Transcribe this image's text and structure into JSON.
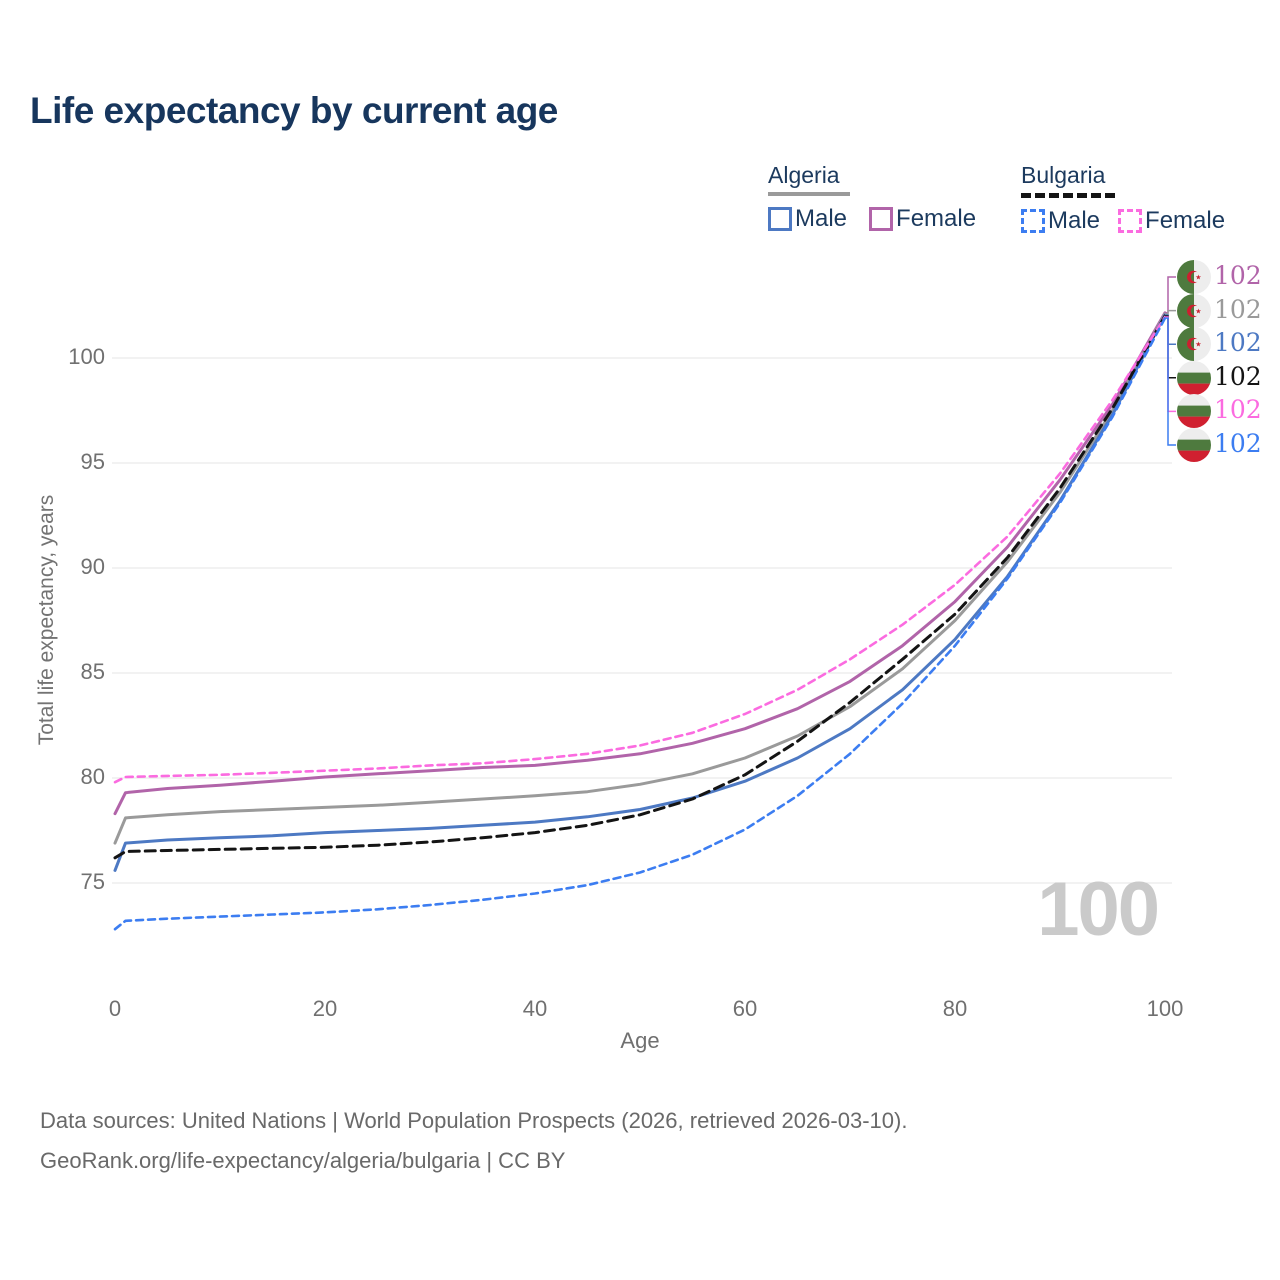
{
  "title": "Life expectancy by current age",
  "watermark": "100",
  "legend": {
    "algeria": {
      "label": "Algeria",
      "male": "Male",
      "female": "Female"
    },
    "bulgaria": {
      "label": "Bulgaria",
      "male": "Male",
      "female": "Female"
    }
  },
  "footer": {
    "line1": "Data sources: United Nations | World Population Prospects (2026, retrieved 2026-03-10).",
    "line2": "GeoRank.org/life-expectancy/algeria/bulgaria | CC BY"
  },
  "colors": {
    "title_text": "#17365d",
    "axis_text": "#707070",
    "grid": "#e9e9e9",
    "algeria_male": "#4d79c3",
    "algeria_female": "#b164a9",
    "algeria_total": "#9a9a9a",
    "bulgaria_male": "#3c7df1",
    "bulgaria_female": "#fb6be0",
    "bulgaria_total": "#141414",
    "watermark": "#cacaca"
  },
  "chart_data": {
    "type": "line",
    "title": "Life expectancy by current age",
    "xlabel": "Age",
    "ylabel": "Total life expectancy, years",
    "xlim": [
      0,
      100
    ],
    "ylim": [
      72,
      103
    ],
    "xticks": [
      0,
      20,
      40,
      60,
      80,
      100
    ],
    "yticks": [
      75,
      80,
      85,
      90,
      95,
      100
    ],
    "grid": "horizontal-only",
    "legend_position": "top-right",
    "ages": [
      0,
      1,
      5,
      10,
      15,
      20,
      25,
      30,
      35,
      40,
      45,
      50,
      55,
      60,
      65,
      70,
      75,
      80,
      85,
      90,
      95,
      100
    ],
    "series": [
      {
        "name": "Algeria Female",
        "country": "Algeria",
        "sex": "Female",
        "line_style": "solid",
        "color": "#b164a9",
        "end_label": "102",
        "end_row": 0,
        "flag": "algeria",
        "values": [
          78.3,
          79.3,
          79.5,
          79.65,
          79.85,
          80.05,
          80.2,
          80.35,
          80.5,
          80.6,
          80.85,
          81.15,
          81.65,
          82.35,
          83.3,
          84.6,
          86.3,
          88.4,
          91.0,
          94.2,
          97.8,
          102.15
        ]
      },
      {
        "name": "Algeria Total",
        "country": "Algeria",
        "sex": "Total",
        "line_style": "solid",
        "color": "#9a9a9a",
        "end_label": "102",
        "end_row": 1,
        "flag": "algeria",
        "values": [
          76.9,
          78.1,
          78.25,
          78.4,
          78.5,
          78.6,
          78.7,
          78.85,
          79.0,
          79.15,
          79.35,
          79.7,
          80.2,
          80.95,
          82.0,
          83.4,
          85.2,
          87.5,
          90.3,
          93.6,
          97.5,
          102.1
        ]
      },
      {
        "name": "Algeria Male",
        "country": "Algeria",
        "sex": "Male",
        "line_style": "solid",
        "color": "#4d79c3",
        "end_label": "102",
        "end_row": 2,
        "flag": "algeria",
        "values": [
          75.6,
          76.9,
          77.05,
          77.15,
          77.25,
          77.4,
          77.5,
          77.6,
          77.75,
          77.9,
          78.15,
          78.5,
          79.05,
          79.85,
          80.95,
          82.35,
          84.2,
          86.6,
          89.6,
          93.2,
          97.3,
          102.05
        ]
      },
      {
        "name": "Bulgaria Total",
        "country": "Bulgaria",
        "sex": "Total",
        "line_style": "dashed",
        "color": "#141414",
        "end_label": "102",
        "end_row": 3,
        "flag": "bulgaria",
        "values": [
          76.2,
          76.5,
          76.55,
          76.6,
          76.65,
          76.7,
          76.8,
          76.95,
          77.15,
          77.4,
          77.75,
          78.25,
          79.0,
          80.15,
          81.75,
          83.6,
          85.65,
          87.8,
          90.5,
          93.8,
          97.6,
          102.0
        ]
      },
      {
        "name": "Bulgaria Female",
        "country": "Bulgaria",
        "sex": "Female",
        "line_style": "dashed",
        "color": "#fb6be0",
        "end_label": "102",
        "end_row": 4,
        "flag": "bulgaria",
        "values": [
          79.8,
          80.05,
          80.1,
          80.15,
          80.25,
          80.35,
          80.45,
          80.6,
          80.7,
          80.9,
          81.15,
          81.55,
          82.15,
          83.05,
          84.2,
          85.65,
          87.3,
          89.2,
          91.5,
          94.5,
          98.0,
          101.95
        ]
      },
      {
        "name": "Bulgaria Male",
        "country": "Bulgaria",
        "sex": "Male",
        "line_style": "dashed",
        "color": "#3c7df1",
        "end_label": "102",
        "end_row": 5,
        "flag": "bulgaria",
        "values": [
          72.8,
          73.2,
          73.3,
          73.4,
          73.5,
          73.6,
          73.75,
          73.95,
          74.2,
          74.5,
          74.9,
          75.5,
          76.35,
          77.55,
          79.15,
          81.15,
          83.55,
          86.3,
          89.5,
          93.1,
          97.2,
          101.9
        ]
      }
    ]
  }
}
